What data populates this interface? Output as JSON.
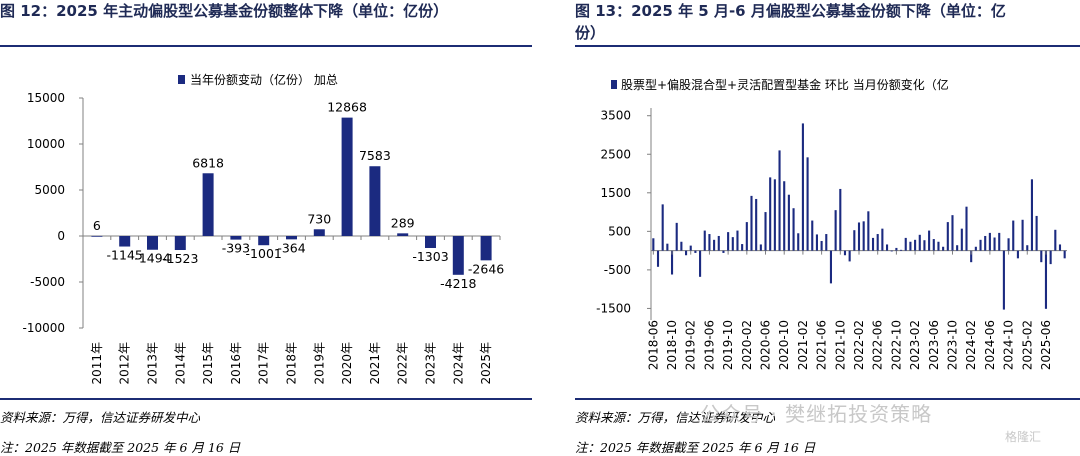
{
  "left": {
    "title": "图 12：2025 年主动偏股型公募基金份额整体下降（单位：亿份）",
    "source": "资料来源：万得，信达证券研发中心",
    "note": "注：2025 年数据截至 2025 年 6 月 16 日"
  },
  "right": {
    "title_line1": "图 13：2025 年 5 月-6 月偏股型公募基金份额下降（单位：亿",
    "title_line2": "份）",
    "source": "资料来源：万得，信达证券研发中心",
    "note": "注：2025 年数据截至 2025 年 6 月 16 日"
  },
  "watermark": "公众号 · 樊继拓投资策略",
  "watermark2": "格隆汇",
  "colors": {
    "bar": "#1b2a80",
    "title": "#1f2a55",
    "rule": "#1c2c74"
  },
  "chart_data": [
    {
      "type": "bar",
      "legend": "当年份额变动（亿份）  加总",
      "legend_position": "top",
      "categories": [
        "2011年",
        "2012年",
        "2013年",
        "2014年",
        "2015年",
        "2016年",
        "2017年",
        "2018年",
        "2019年",
        "2020年",
        "2021年",
        "2022年",
        "2023年",
        "2024年",
        "2025年"
      ],
      "values": [
        6,
        -1145,
        -1494,
        -1523,
        6818,
        -393,
        -1001,
        -364,
        730,
        12868,
        7583,
        289,
        -1303,
        -4218,
        -2646
      ],
      "data_labels": [
        "6",
        "-1145",
        "-1494",
        "-1523",
        "6818",
        "-393",
        "-1001",
        "-364",
        "730",
        "12868",
        "7583",
        "289",
        "-1303",
        "-4218",
        "-2646"
      ],
      "yticks": [
        "15000",
        "10000",
        "5000",
        "0",
        "-5000",
        "-10000"
      ],
      "ylim": [
        -10000,
        15000
      ],
      "grid": false
    },
    {
      "type": "bar",
      "legend": "股票型+偏股混合型+灵活配置型基金  环比  当月份额变化（亿",
      "legend_position": "top",
      "xticks": [
        "2018-06",
        "2018-10",
        "2019-02",
        "2019-06",
        "2019-10",
        "2020-02",
        "2020-06",
        "2020-10",
        "2021-02",
        "2021-06",
        "2021-10",
        "2022-02",
        "2022-06",
        "2022-10",
        "2023-02",
        "2023-06",
        "2023-10",
        "2024-02",
        "2024-06",
        "2024-10",
        "2025-02",
        "2025-06"
      ],
      "yticks": [
        "3500",
        "2500",
        "1500",
        "500",
        "-500",
        "-1500"
      ],
      "ylim": [
        -1800,
        3700
      ],
      "start_month": "2018-06",
      "values": [
        320,
        -420,
        1200,
        180,
        -620,
        720,
        230,
        -120,
        130,
        -60,
        -680,
        520,
        430,
        280,
        380,
        -60,
        480,
        350,
        520,
        170,
        740,
        1420,
        1340,
        160,
        1000,
        1900,
        1850,
        2600,
        1800,
        1450,
        1100,
        450,
        3300,
        2420,
        780,
        420,
        250,
        430,
        -850,
        1050,
        1600,
        -120,
        -280,
        530,
        730,
        760,
        1020,
        330,
        430,
        570,
        160,
        -20,
        70,
        20,
        330,
        230,
        280,
        410,
        270,
        520,
        300,
        230,
        100,
        740,
        920,
        140,
        570,
        1140,
        -300,
        100,
        280,
        380,
        460,
        340,
        460,
        -1530,
        320,
        780,
        -200,
        800,
        140,
        1850,
        900,
        -300,
        -1510,
        -350,
        540,
        160,
        -200
      ]
    }
  ]
}
